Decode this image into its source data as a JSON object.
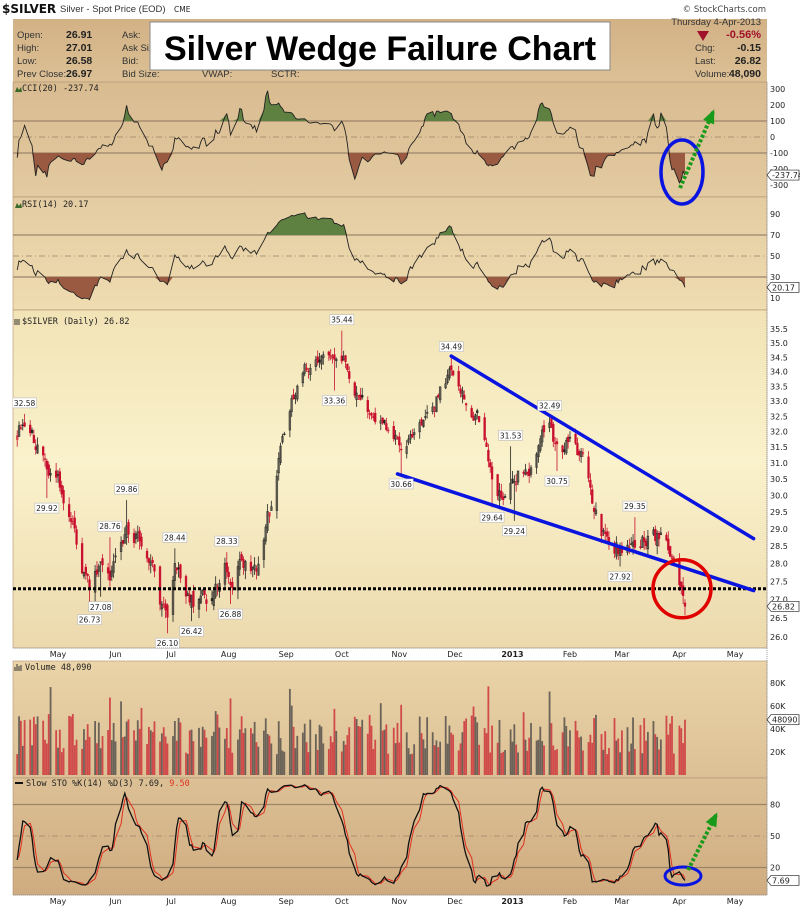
{
  "header": {
    "symbol": "$SILVER",
    "description": "Silver - Spot Price (EOD)",
    "exchange": "CME",
    "copyright": "© StockCharts.com",
    "date": "Thursday  4-Apr-2013",
    "change_pct": "-0.56%",
    "down_color": "#a0102a"
  },
  "quote": {
    "open_label": "Open:",
    "open": "26.91",
    "high_label": "High:",
    "high": "27.01",
    "low_label": "Low:",
    "low": "26.58",
    "prev_close_label": "Prev Close:",
    "prev_close": "26.97",
    "ask_label": "Ask:",
    "ask_size_label": "Ask Size:",
    "bid_label": "Bid:",
    "bid_size_label": "Bid Size:",
    "vwap_label": "VWAP:",
    "sctr_label": "SCTR:",
    "chg_label": "Chg:",
    "chg": "-0.15",
    "last_label": "Last:",
    "last": "26.82",
    "volume_label": "Volume:",
    "volume": "48,090"
  },
  "title": "Silver Wedge Failure Chart",
  "chart_data": {
    "type": "candlestick",
    "colors": {
      "up": "#222222",
      "down": "#c8102e",
      "volume_up": "#6b6358",
      "volume_down": "#d04a4a",
      "overbought_fill": "#5e8040",
      "oversold_fill": "#9a5a42",
      "trendline": "#0a14e0",
      "failure_circle": "#e00000",
      "indicator_circle": "#0a14e0",
      "arrow": "#1a9a1a",
      "sto_d": "#e03020"
    },
    "x_ticks": [
      {
        "label": "May",
        "date": "2012-05-01"
      },
      {
        "label": "Jun",
        "date": "2012-06-01"
      },
      {
        "label": "Jul",
        "date": "2012-07-01"
      },
      {
        "label": "Aug",
        "date": "2012-08-01"
      },
      {
        "label": "Sep",
        "date": "2012-09-01"
      },
      {
        "label": "Oct",
        "date": "2012-10-01"
      },
      {
        "label": "Nov",
        "date": "2012-11-01"
      },
      {
        "label": "Dec",
        "date": "2012-12-01"
      },
      {
        "label": "2013",
        "date": "2013-01-01"
      },
      {
        "label": "Feb",
        "date": "2013-02-01"
      },
      {
        "label": "Mar",
        "date": "2013-03-01"
      },
      {
        "label": "Apr",
        "date": "2013-04-01"
      },
      {
        "label": "May",
        "date": "2013-05-01"
      }
    ],
    "price": {
      "label": "$SILVER (Daily) 26.82",
      "scale": "log",
      "ylim": [
        26.0,
        35.5
      ],
      "ticks": [
        "35.5",
        "35.0",
        "34.5",
        "34.0",
        "33.5",
        "33.0",
        "32.5",
        "32.0",
        "31.5",
        "31.0",
        "30.5",
        "30.0",
        "29.5",
        "29.0",
        "28.5",
        "28.0",
        "27.5",
        "27.0",
        "26.5",
        "26.0"
      ],
      "last": "26.82",
      "approx_close": [
        [
          "2012-02-20",
          33.4
        ],
        [
          "2012-03-10",
          32.6
        ],
        [
          "2012-04-09",
          31.8
        ],
        [
          "2012-04-13",
          32.3
        ],
        [
          "2012-04-21",
          31.5
        ],
        [
          "2012-04-25",
          30.6
        ],
        [
          "2012-04-29",
          31.0
        ],
        [
          "2012-05-05",
          30.0
        ],
        [
          "2012-05-13",
          28.1
        ],
        [
          "2012-05-18",
          27.3
        ],
        [
          "2012-05-24",
          28.2
        ],
        [
          "2012-05-29",
          27.7
        ],
        [
          "2012-06-07",
          29.2
        ],
        [
          "2012-06-14",
          28.7
        ],
        [
          "2012-06-20",
          28.3
        ],
        [
          "2012-06-25",
          27.1
        ],
        [
          "2012-06-29",
          26.6
        ],
        [
          "2012-07-03",
          27.8
        ],
        [
          "2012-07-08",
          27.2
        ],
        [
          "2012-07-12",
          26.9
        ],
        [
          "2012-07-22",
          27.0
        ],
        [
          "2012-07-31",
          27.9
        ],
        [
          "2012-08-02",
          27.3
        ],
        [
          "2012-08-07",
          28.0
        ],
        [
          "2012-08-18",
          28.0
        ],
        [
          "2012-08-23",
          29.5
        ],
        [
          "2012-08-31",
          31.8
        ],
        [
          "2012-09-08",
          33.8
        ],
        [
          "2012-09-16",
          34.6
        ],
        [
          "2012-09-24",
          34.6
        ],
        [
          "2012-09-30",
          34.9
        ],
        [
          "2012-10-03",
          34.3
        ],
        [
          "2012-10-11",
          33.0
        ],
        [
          "2012-10-19",
          32.3
        ],
        [
          "2012-10-27",
          31.8
        ],
        [
          "2012-11-04",
          31.3
        ],
        [
          "2012-11-09",
          32.2
        ],
        [
          "2012-11-17",
          32.7
        ],
        [
          "2012-11-23",
          33.5
        ],
        [
          "2012-11-29",
          34.1
        ],
        [
          "2012-12-06",
          33.2
        ],
        [
          "2012-12-14",
          32.5
        ],
        [
          "2012-12-19",
          31.0
        ],
        [
          "2012-12-23",
          30.1
        ],
        [
          "2012-12-27",
          30.0
        ],
        [
          "2013-01-02",
          30.5
        ],
        [
          "2013-01-10",
          31.0
        ],
        [
          "2013-01-18",
          31.9
        ],
        [
          "2013-01-21",
          32.1
        ],
        [
          "2013-01-26",
          31.4
        ],
        [
          "2013-02-03",
          31.8
        ],
        [
          "2013-02-11",
          30.6
        ],
        [
          "2013-02-16",
          29.2
        ],
        [
          "2013-02-22",
          28.6
        ],
        [
          "2013-02-28",
          28.4
        ],
        [
          "2013-03-05",
          28.7
        ],
        [
          "2013-03-13",
          28.8
        ],
        [
          "2013-03-21",
          28.8
        ],
        [
          "2013-03-27",
          28.5
        ],
        [
          "2013-03-31",
          27.8
        ],
        [
          "2013-04-04",
          26.82
        ]
      ],
      "annotations": [
        {
          "date": "2012-04-13",
          "value": "32.58",
          "side": "above"
        },
        {
          "date": "2012-04-25",
          "value": "29.92",
          "side": "below"
        },
        {
          "date": "2012-05-18",
          "value": "26.73",
          "side": "below"
        },
        {
          "date": "2012-05-24",
          "value": "27.08",
          "side": "below"
        },
        {
          "date": "2012-05-29",
          "value": "28.76",
          "side": "above"
        },
        {
          "date": "2012-06-07",
          "value": "29.86",
          "side": "above"
        },
        {
          "date": "2012-06-29",
          "value": "26.10",
          "side": "below"
        },
        {
          "date": "2012-07-03",
          "value": "28.44",
          "side": "above"
        },
        {
          "date": "2012-07-12",
          "value": "26.42",
          "side": "below"
        },
        {
          "date": "2012-07-31",
          "value": "28.33",
          "side": "above"
        },
        {
          "date": "2012-08-02",
          "value": "26.88",
          "side": "below"
        },
        {
          "date": "2012-09-27",
          "value": "33.36",
          "side": "below"
        },
        {
          "date": "2012-10-01",
          "value": "35.44",
          "side": "above"
        },
        {
          "date": "2012-11-02",
          "value": "30.66",
          "side": "below"
        },
        {
          "date": "2012-11-29",
          "value": "34.49",
          "side": "above"
        },
        {
          "date": "2012-12-21",
          "value": "29.64",
          "side": "below"
        },
        {
          "date": "2012-12-31",
          "value": "31.53",
          "side": "above"
        },
        {
          "date": "2013-01-02",
          "value": "29.24",
          "side": "below"
        },
        {
          "date": "2013-01-21",
          "value": "32.49",
          "side": "above"
        },
        {
          "date": "2013-01-25",
          "value": "30.75",
          "side": "below"
        },
        {
          "date": "2013-02-28",
          "value": "27.92",
          "side": "below"
        },
        {
          "date": "2013-03-08",
          "value": "29.35",
          "side": "above"
        }
      ],
      "trendlines": [
        {
          "name": "upper",
          "start": [
            "2012-11-29",
            34.54
          ],
          "end": [
            "2013-05-11",
            28.72
          ]
        },
        {
          "name": "lower",
          "start": [
            "2012-10-31",
            30.66
          ],
          "end": [
            "2013-05-11",
            27.25
          ]
        }
      ],
      "support_level": 27.3,
      "final_bar": {
        "date": "2013-04-04",
        "open": 26.91,
        "high": 27.01,
        "low": 26.58,
        "close": 26.82
      }
    },
    "cci": {
      "label": "CCI(20) -237.74",
      "ticks": [
        "300",
        "200",
        "100",
        "0",
        "-100",
        "-200",
        "-300"
      ],
      "last": "-237.74",
      "levels": [
        100,
        0,
        -100
      ]
    },
    "rsi": {
      "label": "RSI(14) 20.17",
      "ticks": [
        "90",
        "70",
        "50",
        "30",
        "10"
      ],
      "last": "20.17",
      "levels": [
        70,
        50,
        30
      ]
    },
    "volume": {
      "label": "Volume 48,090",
      "ticks": [
        "80K",
        "60K",
        "40K",
        "20K"
      ],
      "last": "48090"
    },
    "sto": {
      "label": "Slow STO %K(14) %D(3) 7.69, ",
      "label_d": "9.50",
      "ticks": [
        "80",
        "50",
        "20"
      ],
      "last": "7.69",
      "levels": [
        80,
        50,
        20
      ]
    }
  }
}
